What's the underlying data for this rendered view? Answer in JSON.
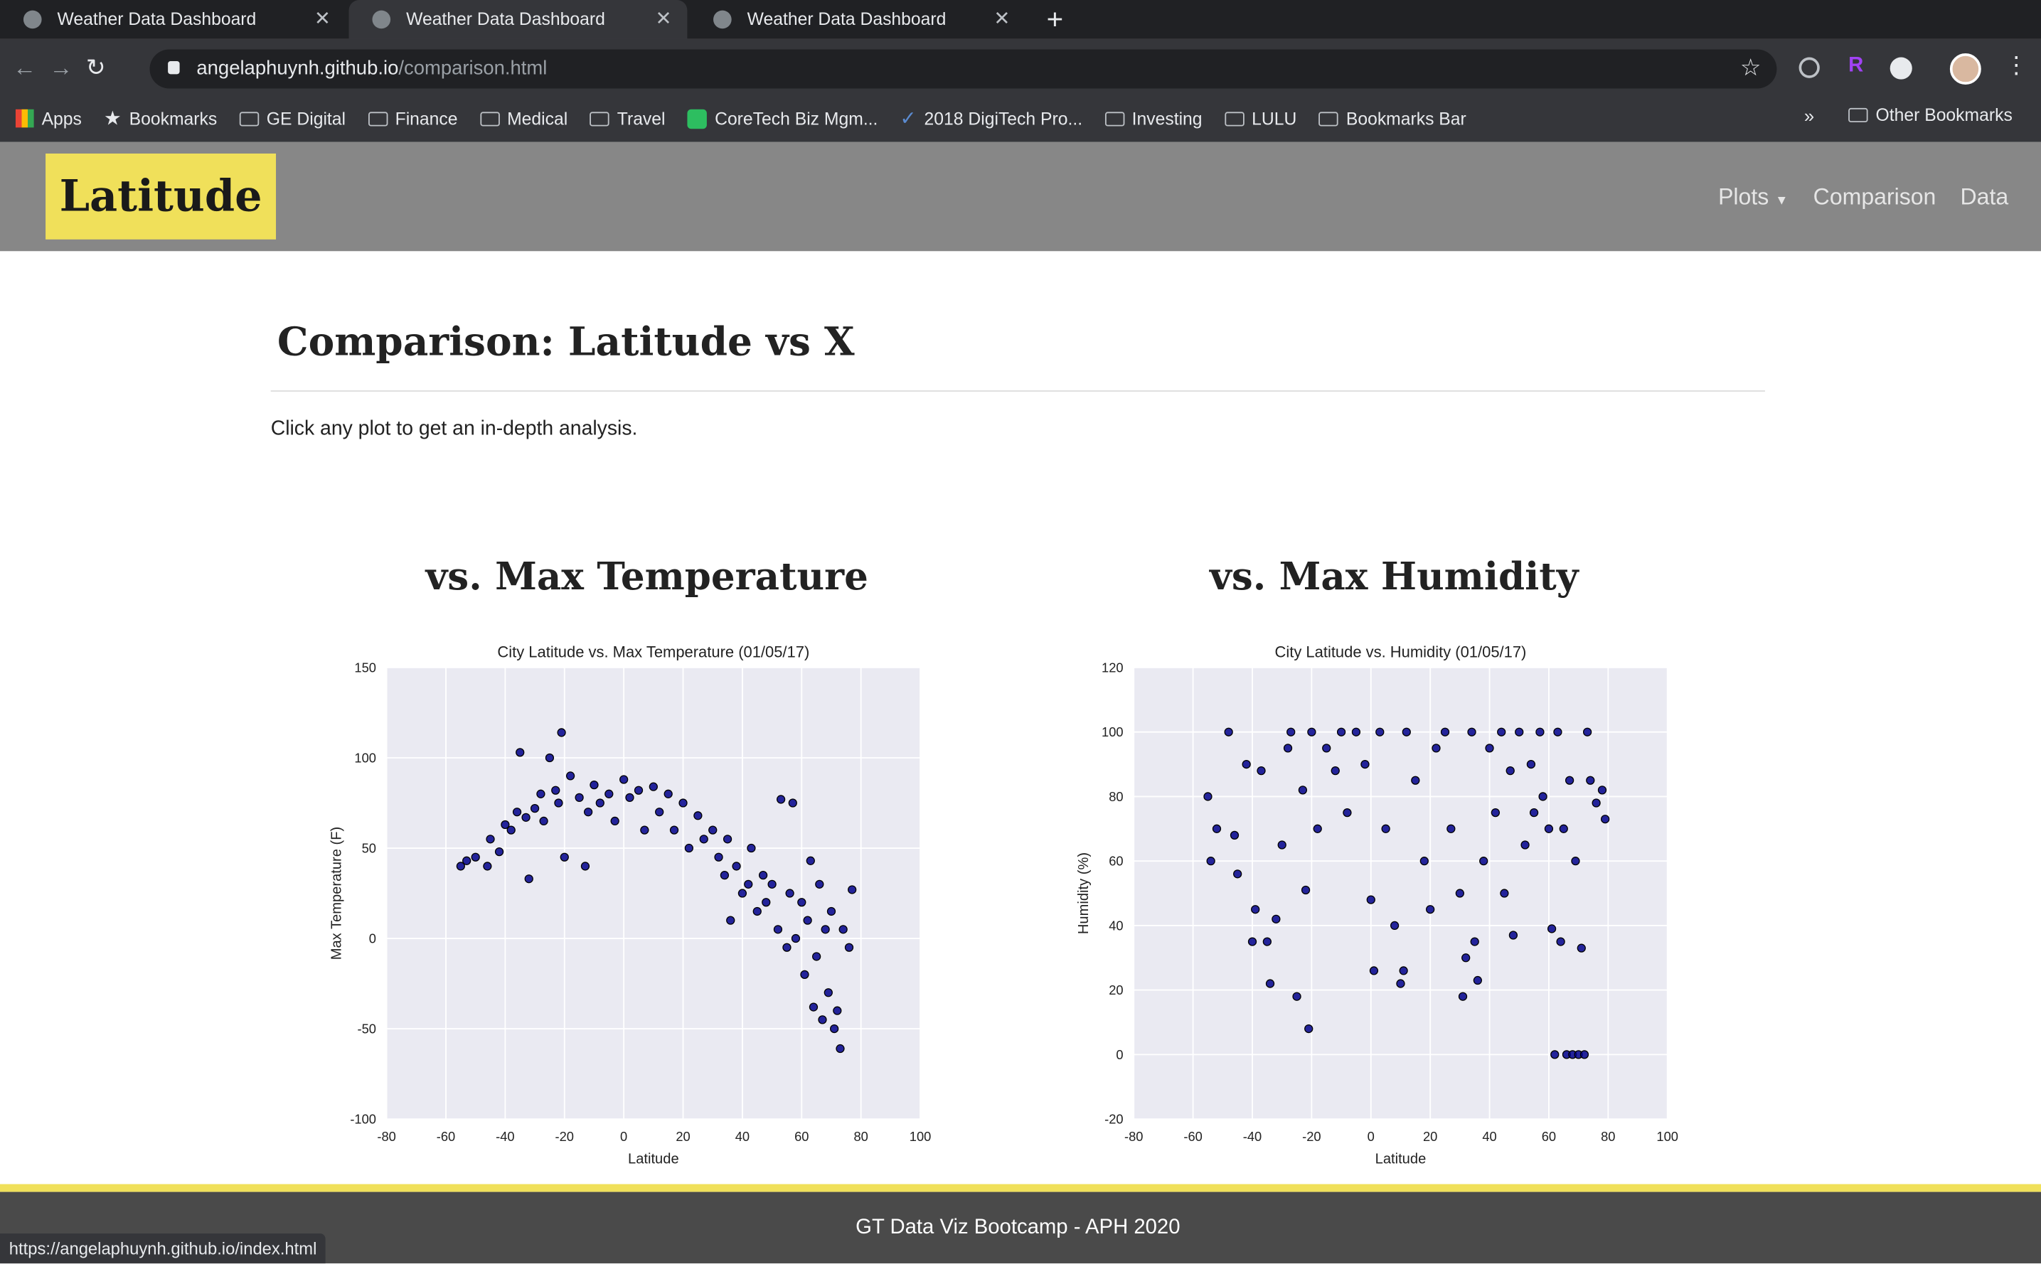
{
  "browser": {
    "tabs": [
      "Weather Data Dashboard",
      "Weather Data Dashboard",
      "Weather Data Dashboard"
    ],
    "url_host": "angelaphuynh.github.io",
    "url_path": "/comparison.html",
    "bookmarks": [
      "Apps",
      "Bookmarks",
      "GE Digital",
      "Finance",
      "Medical",
      "Travel",
      "CoreTech Biz Mgm...",
      "2018 DigiTech Pro...",
      "Investing",
      "LULU",
      "Bookmarks Bar"
    ],
    "bookmarks_overflow": "»",
    "other_bookmarks": "Other Bookmarks",
    "status_url": "https://angelaphuynh.github.io/index.html"
  },
  "navbar": {
    "brand": "Latitude",
    "links": [
      "Plots",
      "Comparison",
      "Data"
    ]
  },
  "main": {
    "title": "Comparison: Latitude vs X",
    "intro": "Click any plot to get an in-depth analysis.",
    "sections": [
      "vs. Max Temperature",
      "vs. Max Humidity"
    ]
  },
  "footer": {
    "text": "GT Data Viz Bootcamp - APH 2020"
  },
  "chart_data": [
    {
      "type": "scatter",
      "title": "City Latitude vs. Max Temperature (01/05/17)",
      "x_label": "Latitude",
      "y_label": "Max Temperature (F)",
      "xlim": [
        -80,
        100
      ],
      "xticks": [
        -80,
        -60,
        -40,
        -20,
        0,
        20,
        40,
        60,
        80,
        100
      ],
      "ylim": [
        -100,
        150
      ],
      "yticks": [
        -100,
        -50,
        0,
        50,
        100,
        150
      ],
      "grid": true,
      "color": "#00008b",
      "x": [
        -55,
        -53,
        -50,
        -46,
        -45,
        -42,
        -40,
        -38,
        -36,
        -35,
        -33,
        -32,
        -30,
        -28,
        -27,
        -25,
        -23,
        -22,
        -21,
        -20,
        -18,
        -15,
        -13,
        -12,
        -10,
        -8,
        -5,
        -3,
        0,
        2,
        5,
        7,
        10,
        12,
        15,
        17,
        20,
        22,
        25,
        27,
        30,
        32,
        34,
        35,
        36,
        38,
        40,
        42,
        43,
        45,
        47,
        48,
        50,
        52,
        53,
        55,
        56,
        57,
        58,
        60,
        61,
        62,
        63,
        64,
        65,
        66,
        67,
        68,
        69,
        70,
        71,
        72,
        73,
        74,
        76,
        77
      ],
      "values": [
        40,
        43,
        45,
        40,
        55,
        48,
        63,
        60,
        70,
        103,
        67,
        33,
        72,
        80,
        65,
        100,
        82,
        75,
        114,
        45,
        90,
        78,
        40,
        70,
        85,
        75,
        80,
        65,
        88,
        78,
        82,
        60,
        84,
        70,
        80,
        60,
        75,
        50,
        68,
        55,
        60,
        45,
        35,
        55,
        10,
        40,
        25,
        30,
        50,
        15,
        35,
        20,
        30,
        5,
        77,
        -5,
        25,
        75,
        0,
        20,
        -20,
        10,
        43,
        -38,
        -10,
        30,
        -45,
        5,
        -30,
        15,
        -50,
        -40,
        -61,
        5,
        -5,
        27
      ]
    },
    {
      "type": "scatter",
      "title": "City Latitude vs. Humidity (01/05/17)",
      "x_label": "Latitude",
      "y_label": "Humidity (%)",
      "xlim": [
        -80,
        100
      ],
      "xticks": [
        -80,
        -60,
        -40,
        -20,
        0,
        20,
        40,
        60,
        80,
        100
      ],
      "ylim": [
        -20,
        120
      ],
      "yticks": [
        -20,
        0,
        20,
        40,
        60,
        80,
        100,
        120
      ],
      "grid": true,
      "color": "#00008b",
      "x": [
        -55,
        -54,
        -52,
        -48,
        -46,
        -45,
        -42,
        -40,
        -39,
        -37,
        -35,
        -34,
        -32,
        -30,
        -28,
        -27,
        -25,
        -23,
        -22,
        -21,
        -20,
        -18,
        -15,
        -12,
        -10,
        -8,
        -5,
        -2,
        0,
        1,
        3,
        5,
        8,
        10,
        11,
        12,
        15,
        18,
        20,
        22,
        25,
        27,
        30,
        31,
        32,
        34,
        35,
        36,
        38,
        40,
        42,
        44,
        45,
        47,
        48,
        50,
        52,
        54,
        55,
        57,
        58,
        60,
        61,
        62,
        63,
        64,
        65,
        66,
        67,
        68,
        69,
        70,
        71,
        72,
        73,
        74,
        76,
        78,
        79
      ],
      "values": [
        80,
        60,
        70,
        100,
        68,
        56,
        90,
        35,
        45,
        88,
        35,
        22,
        42,
        65,
        95,
        100,
        18,
        82,
        51,
        8,
        100,
        70,
        95,
        88,
        100,
        75,
        100,
        90,
        48,
        26,
        100,
        70,
        40,
        22,
        26,
        100,
        85,
        60,
        45,
        95,
        100,
        70,
        50,
        18,
        30,
        100,
        35,
        23,
        60,
        95,
        75,
        100,
        50,
        88,
        37,
        100,
        65,
        90,
        75,
        100,
        80,
        70,
        39,
        0,
        100,
        35,
        70,
        0,
        85,
        0,
        60,
        0,
        33,
        0,
        100,
        85,
        78,
        82,
        73
      ]
    }
  ]
}
